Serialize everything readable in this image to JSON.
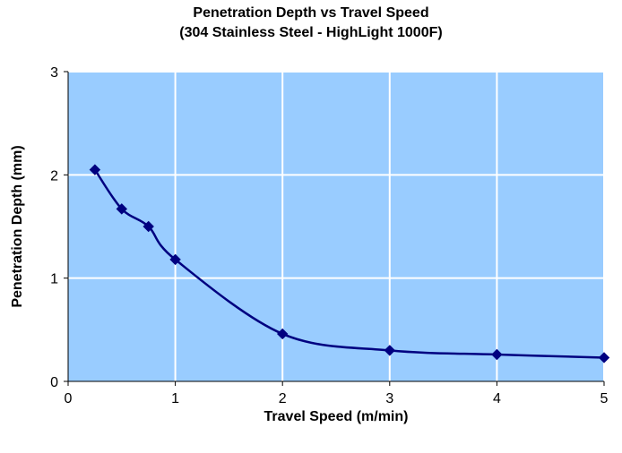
{
  "chart_data": {
    "type": "line",
    "title": "Penetration Depth vs Travel Speed",
    "subtitle": "(304 Stainless Steel - HighLight 1000F)",
    "xlabel": "Travel Speed (m/min)",
    "ylabel": "Penetration Depth (mm)",
    "xlim": [
      0,
      5
    ],
    "ylim": [
      0,
      3
    ],
    "xticks": [
      0,
      1,
      2,
      3,
      4,
      5
    ],
    "yticks": [
      0,
      1,
      2,
      3
    ],
    "grid": true,
    "legend": "none",
    "smooth": true,
    "series": [
      {
        "x": [
          0.25,
          0.5,
          0.75,
          1,
          2,
          3,
          4,
          5
        ],
        "y": [
          2.05,
          1.67,
          1.5,
          1.18,
          0.46,
          0.3,
          0.26,
          0.23
        ],
        "marker": "diamond",
        "color": "#000080"
      }
    ],
    "plot_background": "#99ccff",
    "grid_color": "#ffffff"
  }
}
